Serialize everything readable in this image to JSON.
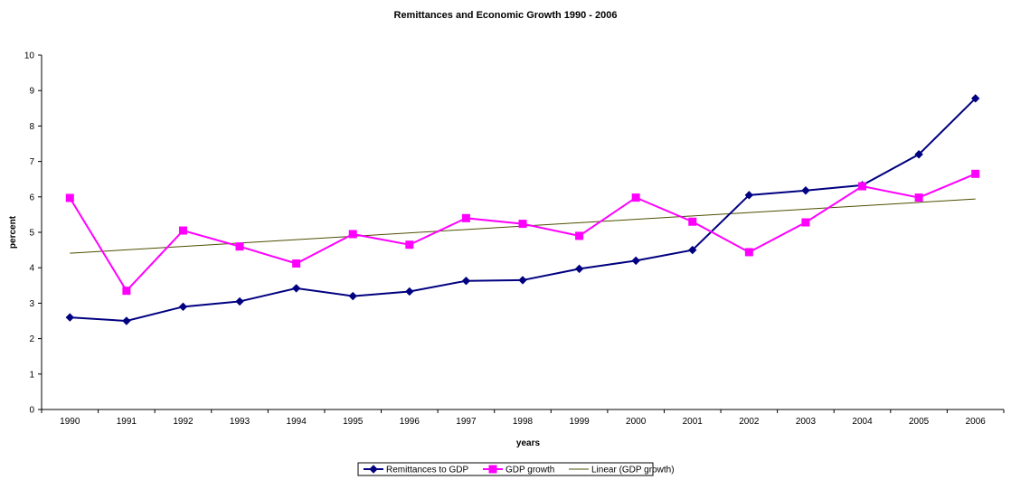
{
  "chart_data": {
    "type": "line",
    "title": "Remittances and Economic Growth 1990 - 2006",
    "xlabel": "years",
    "ylabel": "percent",
    "ylim": [
      0,
      10
    ],
    "yticks": [
      0,
      1,
      2,
      3,
      4,
      5,
      6,
      7,
      8,
      9,
      10
    ],
    "categories": [
      "1990",
      "1991",
      "1992",
      "1993",
      "1994",
      "1995",
      "1996",
      "1997",
      "1998",
      "1999",
      "2000",
      "2001",
      "2002",
      "2003",
      "2004",
      "2005",
      "2006"
    ],
    "grid": false,
    "legend_position": "bottom",
    "series": [
      {
        "name": "Remittances to GDP",
        "color": "#000080",
        "marker": "diamond",
        "values": [
          2.6,
          2.5,
          2.9,
          3.05,
          3.42,
          3.2,
          3.33,
          3.63,
          3.65,
          3.97,
          4.2,
          4.5,
          6.05,
          6.18,
          6.33,
          7.2,
          8.78
        ]
      },
      {
        "name": "GDP growth",
        "color": "#FF00FF",
        "marker": "square",
        "values": [
          5.97,
          3.35,
          5.05,
          4.6,
          4.12,
          4.95,
          4.65,
          5.4,
          5.24,
          4.9,
          5.98,
          5.3,
          4.44,
          5.28,
          6.3,
          5.98,
          6.65
        ]
      }
    ],
    "trendline": {
      "name": "Linear (GDP growth)",
      "color": "#4D4D00",
      "start": 4.41,
      "end": 5.94
    }
  }
}
